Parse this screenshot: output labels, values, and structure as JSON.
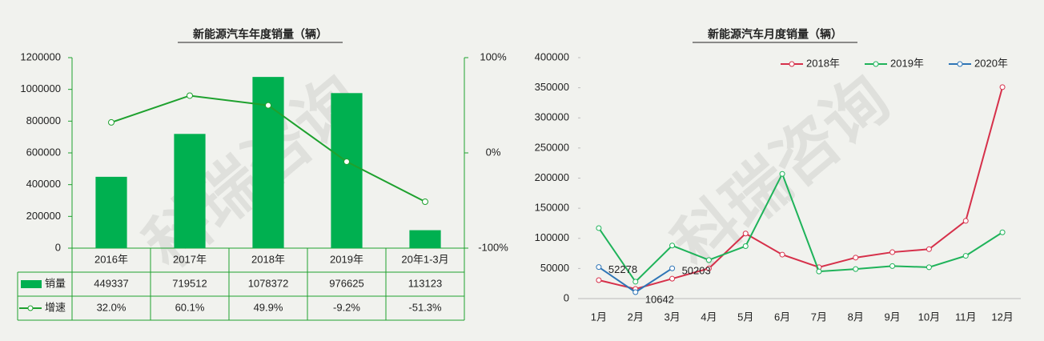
{
  "watermark": "科瑞咨询",
  "chart_data": [
    {
      "type": "bar",
      "title": "新能源汽车年度销量（辆）",
      "categories": [
        "2016年",
        "2017年",
        "2018年",
        "2019年",
        "20年1-3月"
      ],
      "series": [
        {
          "name": "销量",
          "color": "#00b050",
          "values": [
            449337,
            719512,
            1078372,
            976625,
            113123
          ]
        },
        {
          "name": "增速",
          "color": "#1ea12e",
          "type": "line",
          "axis": "y2",
          "values": [
            32.0,
            60.1,
            49.9,
            -9.2,
            -51.3
          ],
          "value_labels": [
            "32.0%",
            "60.1%",
            "49.9%",
            "-9.2%",
            "-51.3%"
          ]
        }
      ],
      "ylim": [
        0,
        1200000
      ],
      "yticks": [
        0,
        200000,
        400000,
        600000,
        800000,
        1000000,
        1200000
      ],
      "y2lim": [
        -100,
        100
      ],
      "y2ticks": [
        {
          "value": -100,
          "label": "-100%"
        },
        {
          "value": 0,
          "label": "0%"
        },
        {
          "value": 100,
          "label": "100%"
        }
      ],
      "grid": false
    },
    {
      "type": "line",
      "title": "新能源汽车月度销量（辆）",
      "categories": [
        "1月",
        "2月",
        "3月",
        "4月",
        "5月",
        "6月",
        "7月",
        "8月",
        "9月",
        "10月",
        "11月",
        "12月"
      ],
      "series": [
        {
          "name": "2018年",
          "color": "#d6304a",
          "values": [
            30600,
            16000,
            33000,
            50000,
            108000,
            73000,
            52000,
            68000,
            77000,
            82000,
            129000,
            351000
          ]
        },
        {
          "name": "2019年",
          "color": "#1fb35a",
          "values": [
            117000,
            28000,
            88000,
            64000,
            87000,
            207000,
            45000,
            49000,
            54000,
            52000,
            71000,
            110000
          ]
        },
        {
          "name": "2020年",
          "color": "#2e75b6",
          "values": [
            52278,
            10642,
            50203,
            null,
            null,
            null,
            null,
            null,
            null,
            null,
            null,
            null
          ],
          "data_labels": true
        }
      ],
      "ylim": [
        0,
        400000
      ],
      "yticks": [
        0,
        50000,
        100000,
        150000,
        200000,
        250000,
        300000,
        350000,
        400000
      ],
      "grid": false,
      "legend": "top"
    }
  ]
}
